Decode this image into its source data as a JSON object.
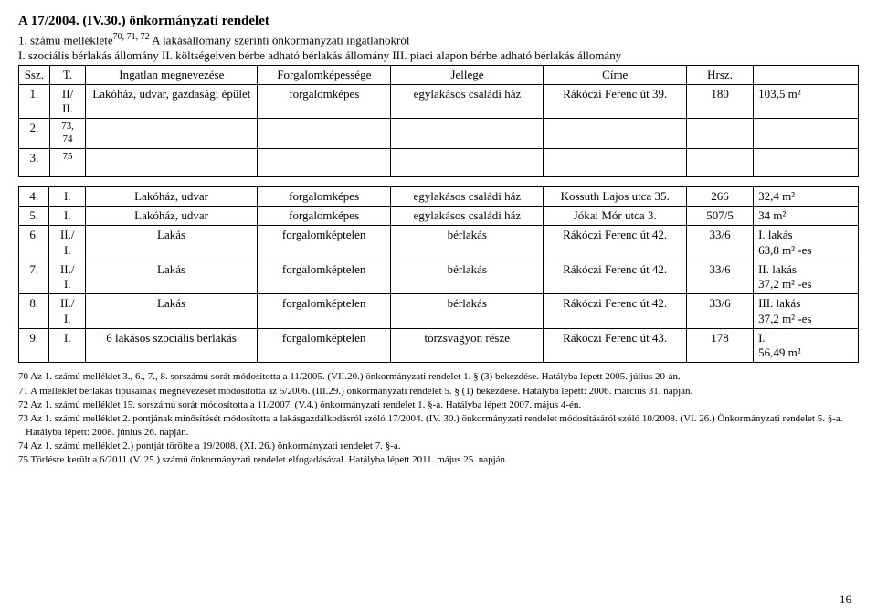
{
  "header": {
    "title": "A 17/2004. (IV.30.) önkormányzati rendelet",
    "line1_pre": "1. számú melléklete",
    "line1_sup": "70, 71, 72",
    "line1_post": " A lakásállomány szerinti önkormányzati ingatlanokról",
    "line2": "I. szociális bérlakás állomány II. költségelven bérbe adható bérlakás állomány III. piaci alapon bérbe adható bérlakás állomány"
  },
  "cols": {
    "ssz": "Ssz.",
    "t": "T.",
    "ingatlan": "Ingatlan megnevezése",
    "forg": "Forgalomképessége",
    "jelleg": "Jellege",
    "cime": "Címe",
    "hrsz": "Hrsz.",
    "ext": ""
  },
  "t1": {
    "r1": {
      "ssz": "1.",
      "t": "II/\nII.",
      "ing": "Lakóház, udvar, gazdasági épület",
      "forg": "forgalomképes",
      "jel": "egylakásos családi ház",
      "cim": "Rákóczi Ferenc út 39.",
      "hrsz": "180",
      "ext": "103,5 m²"
    },
    "r2": {
      "ssz": "2.",
      "t": "73,\n74",
      "ing": "",
      "forg": "",
      "jel": "",
      "cim": "",
      "hrsz": "",
      "ext": ""
    },
    "r3": {
      "ssz": "3.",
      "t": "75",
      "ing": "",
      "forg": "",
      "jel": "",
      "cim": "",
      "hrsz": "",
      "ext": ""
    }
  },
  "t2": {
    "r4": {
      "ssz": "4.",
      "t": "I.",
      "ing": "Lakóház, udvar",
      "forg": "forgalomképes",
      "jel": "egylakásos családi ház",
      "cim": "Kossuth Lajos utca 35.",
      "hrsz": "266",
      "ext": "32,4 m²"
    },
    "r5": {
      "ssz": "5.",
      "t": "I.",
      "ing": "Lakóház, udvar",
      "forg": "forgalomképes",
      "jel": "egylakásos családi ház",
      "cim": "Jókai Mór utca 3.",
      "hrsz": "507/5",
      "ext": "34 m²"
    },
    "r6": {
      "ssz": "6.",
      "t": "II./\nI.",
      "ing": "Lakás",
      "forg": "forgalomképtelen",
      "jel": "bérlakás",
      "cim": "Rákóczi Ferenc út 42.",
      "hrsz": "33/6",
      "ext": "I. lakás\n63,8 m² -es"
    },
    "r7": {
      "ssz": "7.",
      "t": "II./\nI.",
      "ing": "Lakás",
      "forg": "forgalomképtelen",
      "jel": "bérlakás",
      "cim": "Rákóczi Ferenc út 42.",
      "hrsz": "33/6",
      "ext": "II. lakás\n37,2 m² -es"
    },
    "r8": {
      "ssz": "8.",
      "t": "II./\nI.",
      "ing": "Lakás",
      "forg": "forgalomképtelen",
      "jel": "bérlakás",
      "cim": "Rákóczi Ferenc út 42.",
      "hrsz": "33/6",
      "ext": "III. lakás\n37,2 m² -es"
    },
    "r9": {
      "ssz": "9.",
      "t": "I.",
      "ing": "6 lakásos szociális bérlakás",
      "forg": "forgalomképtelen",
      "jel": "törzsvagyon része",
      "cim": "Rákóczi Ferenc út 43.",
      "hrsz": "178",
      "ext": "I.\n56,49 m²"
    }
  },
  "footnotes": {
    "f70": "70 Az 1. számú melléklet 3., 6., 7., 8. sorszámú sorát módosította a 11/2005. (VII.20.) önkormányzati rendelet 1. § (3) bekezdése. Hatályba lépett 2005. július 20-án.",
    "f71": "71 A melléklet bérlakás típusainak megnevezését módosította az 5/2006. (III.29.) önkormányzati rendelet 5. § (1) bekezdése. Hatályba lépett: 2006. március 31. napján.",
    "f72": "72 Az 1. számú melléklet 15. sorszámú sorát módosította a 11/2007. (V.4.) önkormányzati rendelet 1. §-a. Hatályba lépett 2007. május 4-én.",
    "f73": "73 Az 1. számú melléklet 2. pontjának minősítését módosította a lakásgazdálkodásról szóló 17/2004. (IV. 30.) önkormányzati rendelet módosításáról szóló 10/2008. (VI. 26.) Önkormányzati rendelet 5. §-a. Hatályba lépett: 2008. június 26. napján.",
    "f74": "74 Az 1. számú melléklet 2.) pontját törölte a 19/2008. (XI. 26.) önkormányzati rendelet 7. §-a.",
    "f75": "75 Törlésre került a 6/2011.(V. 25.) számú önkormányzati rendelet elfogadásával. Hatályba lépett 2011. május 25. napján."
  },
  "pagenum": "16",
  "widths": {
    "ssz": "32px",
    "t": "38px",
    "ing": "180px",
    "forg": "140px",
    "jel": "160px",
    "cim": "150px",
    "hrsz": "70px",
    "ext": "110px"
  }
}
